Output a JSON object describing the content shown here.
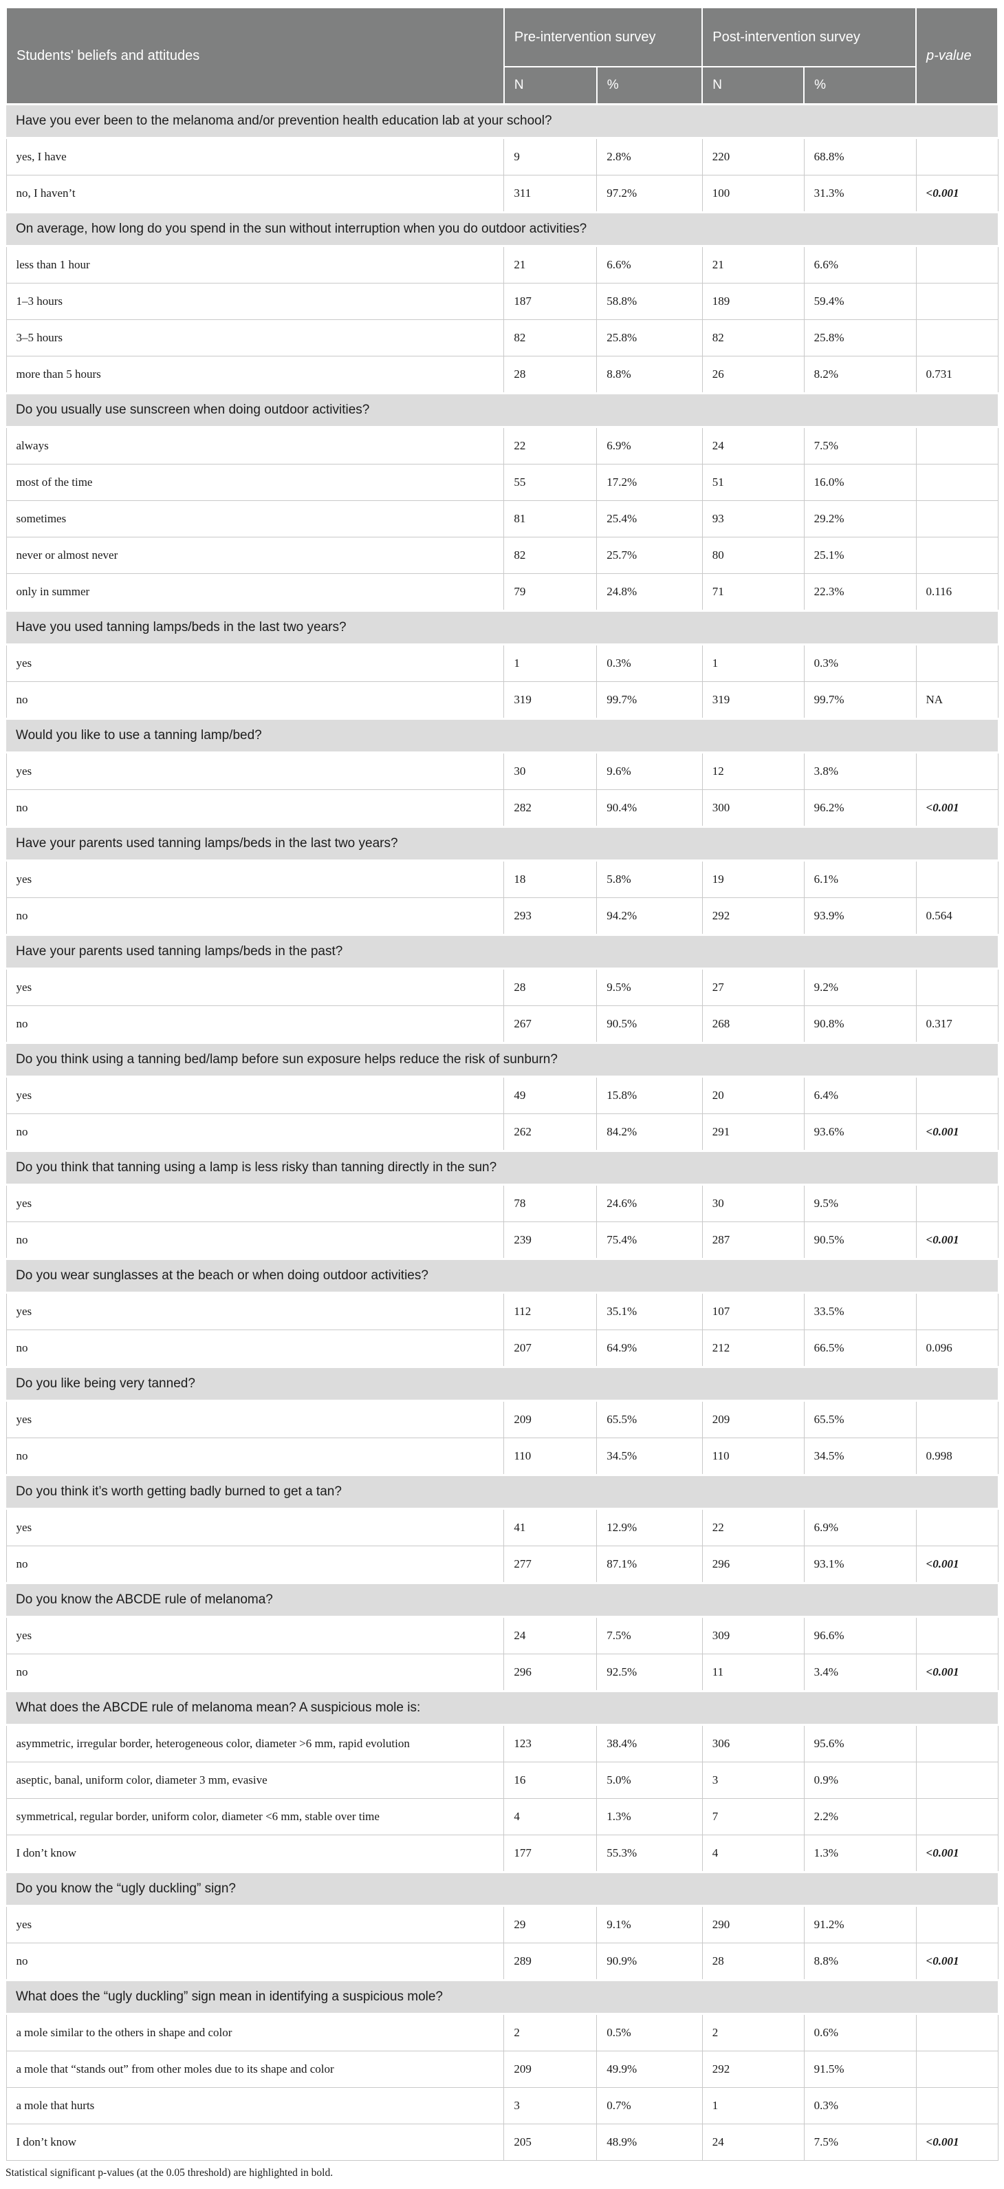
{
  "table": {
    "header": {
      "col1": "Students' beliefs and attitudes",
      "pre": "Pre-intervention survey",
      "post": "Post-intervention survey",
      "p": "p-value",
      "n_label": "N",
      "pct_label": "%"
    },
    "footnote": "Statistical significant p-values (at the 0.05 threshold) are highlighted in bold.",
    "sections": [
      {
        "question": "Have you ever been to the melanoma and/or prevention health education lab at your school?",
        "rows": [
          {
            "label": "yes, I have",
            "pre_n": "9",
            "pre_pct": "2.8%",
            "post_n": "220",
            "post_pct": "68.8%",
            "p": "",
            "p_bold": false
          },
          {
            "label": "no, I haven’t",
            "pre_n": "311",
            "pre_pct": "97.2%",
            "post_n": "100",
            "post_pct": "31.3%",
            "p": "<0.001",
            "p_bold": true
          }
        ]
      },
      {
        "question": "On average, how long do you spend in the sun without interruption when you do outdoor activities?",
        "rows": [
          {
            "label": "less than 1 hour",
            "pre_n": "21",
            "pre_pct": "6.6%",
            "post_n": "21",
            "post_pct": "6.6%",
            "p": "",
            "p_bold": false
          },
          {
            "label": "1–3 hours",
            "pre_n": "187",
            "pre_pct": "58.8%",
            "post_n": "189",
            "post_pct": "59.4%",
            "p": "",
            "p_bold": false
          },
          {
            "label": "3–5 hours",
            "pre_n": "82",
            "pre_pct": "25.8%",
            "post_n": "82",
            "post_pct": "25.8%",
            "p": "",
            "p_bold": false
          },
          {
            "label": "more than 5 hours",
            "pre_n": "28",
            "pre_pct": "8.8%",
            "post_n": "26",
            "post_pct": "8.2%",
            "p": "0.731",
            "p_bold": false
          }
        ]
      },
      {
        "question": "Do you usually use sunscreen when doing outdoor activities?",
        "rows": [
          {
            "label": "always",
            "pre_n": "22",
            "pre_pct": "6.9%",
            "post_n": "24",
            "post_pct": "7.5%",
            "p": "",
            "p_bold": false
          },
          {
            "label": "most of the time",
            "pre_n": "55",
            "pre_pct": "17.2%",
            "post_n": "51",
            "post_pct": "16.0%",
            "p": "",
            "p_bold": false
          },
          {
            "label": "sometimes",
            "pre_n": "81",
            "pre_pct": "25.4%",
            "post_n": "93",
            "post_pct": "29.2%",
            "p": "",
            "p_bold": false
          },
          {
            "label": "never or almost never",
            "pre_n": "82",
            "pre_pct": "25.7%",
            "post_n": "80",
            "post_pct": "25.1%",
            "p": "",
            "p_bold": false
          },
          {
            "label": "only in summer",
            "pre_n": "79",
            "pre_pct": "24.8%",
            "post_n": "71",
            "post_pct": "22.3%",
            "p": "0.116",
            "p_bold": false
          }
        ]
      },
      {
        "question": "Have you used tanning lamps/beds in the last two years?",
        "rows": [
          {
            "label": "yes",
            "pre_n": "1",
            "pre_pct": "0.3%",
            "post_n": "1",
            "post_pct": "0.3%",
            "p": "",
            "p_bold": false
          },
          {
            "label": "no",
            "pre_n": "319",
            "pre_pct": "99.7%",
            "post_n": "319",
            "post_pct": "99.7%",
            "p": "NA",
            "p_bold": false
          }
        ]
      },
      {
        "question": "Would you like to use a tanning lamp/bed?",
        "rows": [
          {
            "label": "yes",
            "pre_n": "30",
            "pre_pct": "9.6%",
            "post_n": "12",
            "post_pct": "3.8%",
            "p": "",
            "p_bold": false
          },
          {
            "label": "no",
            "pre_n": "282",
            "pre_pct": "90.4%",
            "post_n": "300",
            "post_pct": "96.2%",
            "p": "<0.001",
            "p_bold": true
          }
        ]
      },
      {
        "question": "Have your parents used tanning lamps/beds in the last two years?",
        "rows": [
          {
            "label": "yes",
            "pre_n": "18",
            "pre_pct": "5.8%",
            "post_n": "19",
            "post_pct": "6.1%",
            "p": "",
            "p_bold": false
          },
          {
            "label": "no",
            "pre_n": "293",
            "pre_pct": "94.2%",
            "post_n": "292",
            "post_pct": "93.9%",
            "p": "0.564",
            "p_bold": false
          }
        ]
      },
      {
        "question": "Have your parents used tanning lamps/beds in the past?",
        "rows": [
          {
            "label": "yes",
            "pre_n": "28",
            "pre_pct": "9.5%",
            "post_n": "27",
            "post_pct": "9.2%",
            "p": "",
            "p_bold": false
          },
          {
            "label": "no",
            "pre_n": "267",
            "pre_pct": "90.5%",
            "post_n": "268",
            "post_pct": "90.8%",
            "p": "0.317",
            "p_bold": false
          }
        ]
      },
      {
        "question": "Do you think using a tanning bed/lamp before sun exposure helps reduce the risk of sunburn?",
        "rows": [
          {
            "label": "yes",
            "pre_n": "49",
            "pre_pct": "15.8%",
            "post_n": "20",
            "post_pct": "6.4%",
            "p": "",
            "p_bold": false
          },
          {
            "label": "no",
            "pre_n": "262",
            "pre_pct": "84.2%",
            "post_n": "291",
            "post_pct": "93.6%",
            "p": "<0.001",
            "p_bold": true
          }
        ]
      },
      {
        "question": "Do you think that tanning using a lamp is less risky than tanning directly in the sun?",
        "rows": [
          {
            "label": "yes",
            "pre_n": "78",
            "pre_pct": "24.6%",
            "post_n": "30",
            "post_pct": "9.5%",
            "p": "",
            "p_bold": false
          },
          {
            "label": "no",
            "pre_n": "239",
            "pre_pct": "75.4%",
            "post_n": "287",
            "post_pct": "90.5%",
            "p": "<0.001",
            "p_bold": true
          }
        ]
      },
      {
        "question": "Do you wear sunglasses at the beach or when doing outdoor activities?",
        "rows": [
          {
            "label": "yes",
            "pre_n": "112",
            "pre_pct": "35.1%",
            "post_n": "107",
            "post_pct": "33.5%",
            "p": "",
            "p_bold": false
          },
          {
            "label": "no",
            "pre_n": "207",
            "pre_pct": "64.9%",
            "post_n": "212",
            "post_pct": "66.5%",
            "p": "0.096",
            "p_bold": false
          }
        ]
      },
      {
        "question": "Do you like being very tanned?",
        "rows": [
          {
            "label": "yes",
            "pre_n": "209",
            "pre_pct": "65.5%",
            "post_n": "209",
            "post_pct": "65.5%",
            "p": "",
            "p_bold": false
          },
          {
            "label": "no",
            "pre_n": "110",
            "pre_pct": "34.5%",
            "post_n": "110",
            "post_pct": "34.5%",
            "p": "0.998",
            "p_bold": false
          }
        ]
      },
      {
        "question": "Do you think it’s worth getting badly burned to get a tan?",
        "rows": [
          {
            "label": "yes",
            "pre_n": "41",
            "pre_pct": "12.9%",
            "post_n": "22",
            "post_pct": "6.9%",
            "p": "",
            "p_bold": false
          },
          {
            "label": "no",
            "pre_n": "277",
            "pre_pct": "87.1%",
            "post_n": "296",
            "post_pct": "93.1%",
            "p": "<0.001",
            "p_bold": true
          }
        ]
      },
      {
        "question": "Do you know the ABCDE rule of melanoma?",
        "rows": [
          {
            "label": "yes",
            "pre_n": "24",
            "pre_pct": "7.5%",
            "post_n": "309",
            "post_pct": "96.6%",
            "p": "",
            "p_bold": false
          },
          {
            "label": "no",
            "pre_n": "296",
            "pre_pct": "92.5%",
            "post_n": "11",
            "post_pct": "3.4%",
            "p": "<0.001",
            "p_bold": true
          }
        ]
      },
      {
        "question": "What does the ABCDE rule of melanoma mean? A suspicious mole is:",
        "rows": [
          {
            "label": "asymmetric, irregular border, heterogeneous color, diameter >6 mm, rapid evolution",
            "pre_n": "123",
            "pre_pct": "38.4%",
            "post_n": "306",
            "post_pct": "95.6%",
            "p": "",
            "p_bold": false
          },
          {
            "label": "aseptic, banal, uniform color, diameter 3 mm, evasive",
            "pre_n": "16",
            "pre_pct": "5.0%",
            "post_n": "3",
            "post_pct": "0.9%",
            "p": "",
            "p_bold": false
          },
          {
            "label": "symmetrical, regular border, uniform color, diameter <6 mm, stable over time",
            "pre_n": "4",
            "pre_pct": "1.3%",
            "post_n": "7",
            "post_pct": "2.2%",
            "p": "",
            "p_bold": false
          },
          {
            "label": "I don’t know",
            "pre_n": "177",
            "pre_pct": "55.3%",
            "post_n": "4",
            "post_pct": "1.3%",
            "p": "<0.001",
            "p_bold": true
          }
        ]
      },
      {
        "question": "Do you know the “ugly duckling” sign?",
        "rows": [
          {
            "label": "yes",
            "pre_n": "29",
            "pre_pct": "9.1%",
            "post_n": "290",
            "post_pct": "91.2%",
            "p": "",
            "p_bold": false
          },
          {
            "label": "no",
            "pre_n": "289",
            "pre_pct": "90.9%",
            "post_n": "28",
            "post_pct": "8.8%",
            "p": "<0.001",
            "p_bold": true
          }
        ]
      },
      {
        "question": "What does the “ugly duckling” sign mean in identifying a suspicious mole?",
        "rows": [
          {
            "label": "a mole similar to the others in shape and color",
            "pre_n": "2",
            "pre_pct": "0.5%",
            "post_n": "2",
            "post_pct": "0.6%",
            "p": "",
            "p_bold": false
          },
          {
            "label": "a mole that “stands out” from other moles due to its shape and color",
            "pre_n": "209",
            "pre_pct": "49.9%",
            "post_n": "292",
            "post_pct": "91.5%",
            "p": "",
            "p_bold": false
          },
          {
            "label": "a mole that hurts",
            "pre_n": "3",
            "pre_pct": "0.7%",
            "post_n": "1",
            "post_pct": "0.3%",
            "p": "",
            "p_bold": false
          },
          {
            "label": "I don’t know",
            "pre_n": "205",
            "pre_pct": "48.9%",
            "post_n": "24",
            "post_pct": "7.5%",
            "p": "<0.001",
            "p_bold": true
          }
        ]
      }
    ]
  }
}
